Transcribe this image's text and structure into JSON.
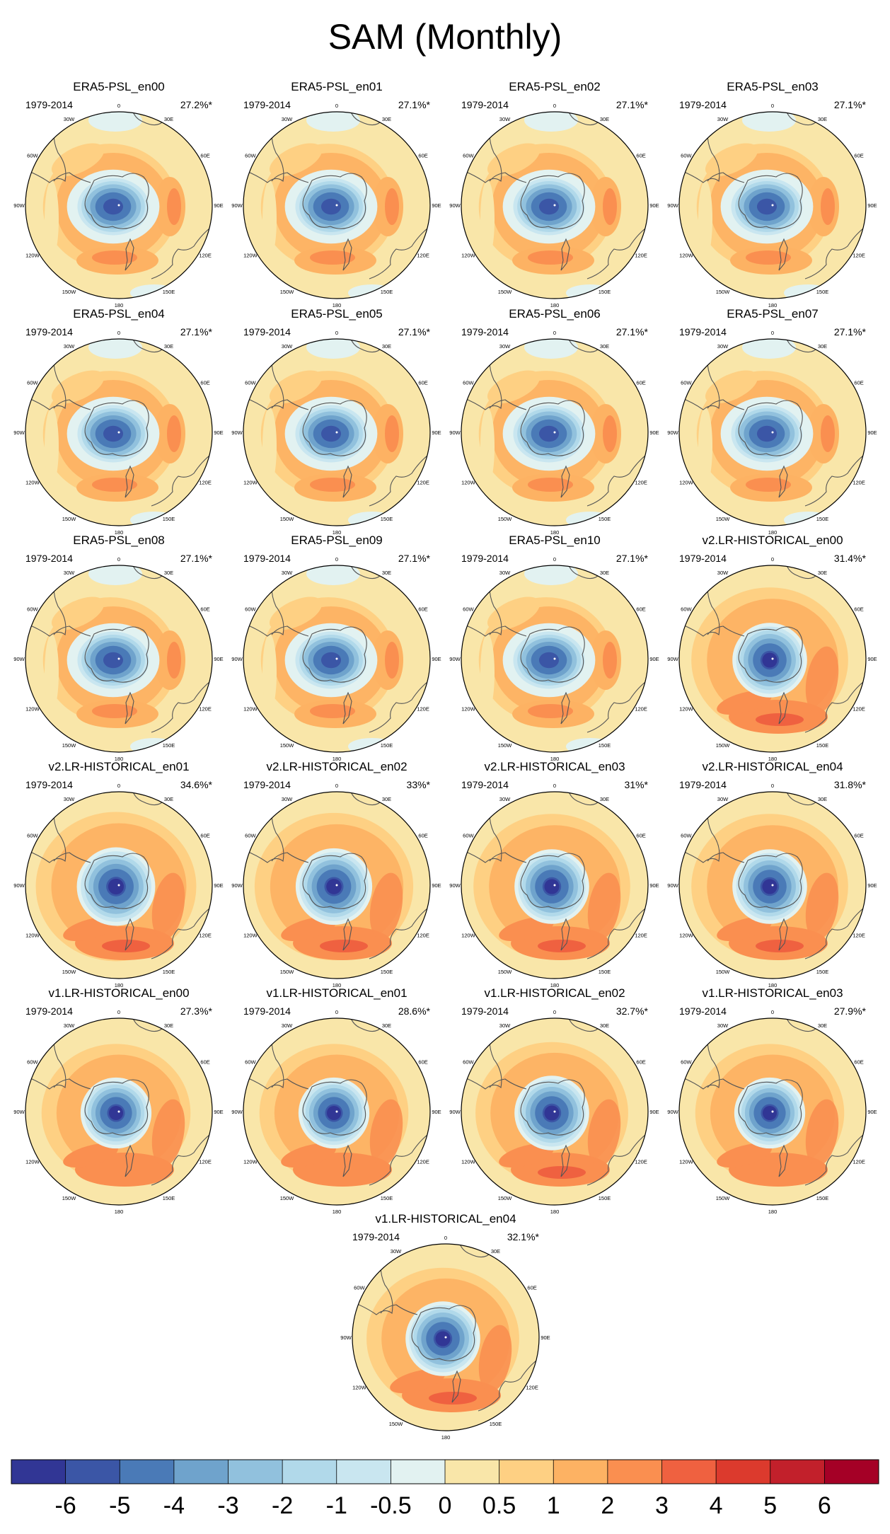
{
  "figure": {
    "title": "SAM (Monthly)"
  },
  "panels": [
    {
      "title": "ERA5-PSL_en00",
      "years": "1979-2014",
      "pct": "27.2%*",
      "group": "era5",
      "blue_radius": 0.37
    },
    {
      "title": "ERA5-PSL_en01",
      "years": "1979-2014",
      "pct": "27.1%*",
      "group": "era5",
      "blue_radius": 0.37
    },
    {
      "title": "ERA5-PSL_en02",
      "years": "1979-2014",
      "pct": "27.1%*",
      "group": "era5",
      "blue_radius": 0.37
    },
    {
      "title": "ERA5-PSL_en03",
      "years": "1979-2014",
      "pct": "27.1%*",
      "group": "era5",
      "blue_radius": 0.37
    },
    {
      "title": "ERA5-PSL_en04",
      "years": "1979-2014",
      "pct": "27.1%*",
      "group": "era5",
      "blue_radius": 0.37
    },
    {
      "title": "ERA5-PSL_en05",
      "years": "1979-2014",
      "pct": "27.1%*",
      "group": "era5",
      "blue_radius": 0.37
    },
    {
      "title": "ERA5-PSL_en06",
      "years": "1979-2014",
      "pct": "27.1%*",
      "group": "era5",
      "blue_radius": 0.37
    },
    {
      "title": "ERA5-PSL_en07",
      "years": "1979-2014",
      "pct": "27.1%*",
      "group": "era5",
      "blue_radius": 0.37
    },
    {
      "title": "ERA5-PSL_en08",
      "years": "1979-2014",
      "pct": "27.1%*",
      "group": "era5",
      "blue_radius": 0.37
    },
    {
      "title": "ERA5-PSL_en09",
      "years": "1979-2014",
      "pct": "27.1%*",
      "group": "era5",
      "blue_radius": 0.37
    },
    {
      "title": "ERA5-PSL_en10",
      "years": "1979-2014",
      "pct": "27.1%*",
      "group": "era5",
      "blue_radius": 0.37
    },
    {
      "title": "v2.LR-HISTORICAL_en00",
      "years": "1979-2014",
      "pct": "31.4%*",
      "group": "v2",
      "blue_radius": 0.4
    },
    {
      "title": "v2.LR-HISTORICAL_en01",
      "years": "1979-2014",
      "pct": "34.6%*",
      "group": "v2",
      "blue_radius": 0.42
    },
    {
      "title": "v2.LR-HISTORICAL_en02",
      "years": "1979-2014",
      "pct": "33%*",
      "group": "v2",
      "blue_radius": 0.41
    },
    {
      "title": "v2.LR-HISTORICAL_en03",
      "years": "1979-2014",
      "pct": "31%*",
      "group": "v2",
      "blue_radius": 0.4
    },
    {
      "title": "v2.LR-HISTORICAL_en04",
      "years": "1979-2014",
      "pct": "31.8%*",
      "group": "v2",
      "blue_radius": 0.4
    },
    {
      "title": "v1.LR-HISTORICAL_en00",
      "years": "1979-2014",
      "pct": "27.3%*",
      "group": "v1",
      "blue_radius": 0.38
    },
    {
      "title": "v1.LR-HISTORICAL_en01",
      "years": "1979-2014",
      "pct": "28.6%*",
      "group": "v1",
      "blue_radius": 0.38
    },
    {
      "title": "v1.LR-HISTORICAL_en02",
      "years": "1979-2014",
      "pct": "32.7%*",
      "group": "v1",
      "blue_radius": 0.4
    },
    {
      "title": "v1.LR-HISTORICAL_en03",
      "years": "1979-2014",
      "pct": "27.9%*",
      "group": "v1",
      "blue_radius": 0.38
    },
    {
      "title": "v1.LR-HISTORICAL_en04",
      "years": "1979-2014",
      "pct": "32.1%*",
      "group": "v1",
      "blue_radius": 0.4
    }
  ],
  "lon_labels": [
    "0",
    "30E",
    "60E",
    "90E",
    "120E",
    "150E",
    "180",
    "150W",
    "120W",
    "90W",
    "60W",
    "30W"
  ],
  "colorbar": {
    "labels": [
      "-6",
      "-5",
      "-4",
      "-3",
      "-2",
      "-1",
      "-0.5",
      "0",
      "0.5",
      "1",
      "2",
      "3",
      "4",
      "5",
      "6"
    ],
    "colors": [
      "#313695",
      "#3b56a6",
      "#4a7ab7",
      "#6fa3cc",
      "#91c1dd",
      "#b1d9ea",
      "#c9e6f0",
      "#e2f2f1",
      "#f9e6a9",
      "#fed083",
      "#fdb263",
      "#fa8f50",
      "#ef6140",
      "#dc3a2d",
      "#c2202b",
      "#a50026"
    ]
  }
}
